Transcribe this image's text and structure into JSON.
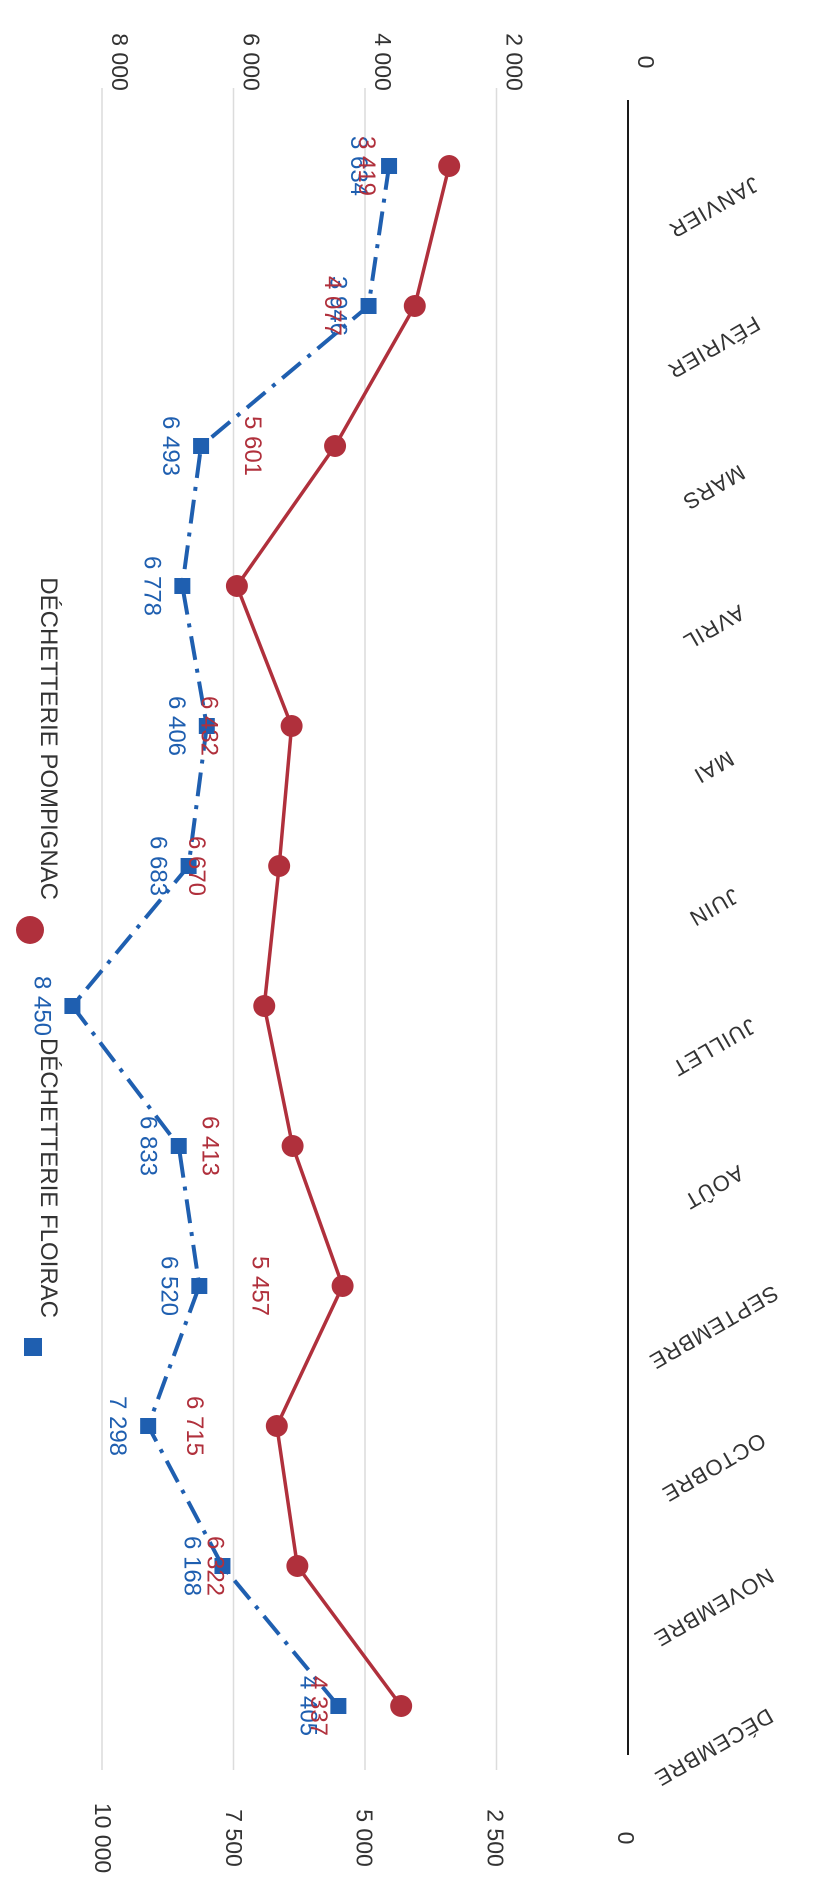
{
  "chart_data": {
    "type": "line",
    "title": "",
    "xlabel": "",
    "ylabel": "",
    "categories": [
      "JANVIER",
      "FÉVRIER",
      "MARS",
      "AVRIL",
      "MAI",
      "JUIN",
      "JUILLET",
      "AOÛT",
      "SEPTEMBRE",
      "OCTOBRE",
      "NOVEMBRE",
      "DÉCEMBRE"
    ],
    "series": [
      {
        "name": "DÉCHETTERIE FLOIRAC",
        "color": "#1f5fb0",
        "axis": "right",
        "marker": "square",
        "line_style": "dash-dot",
        "values": [
          3634,
          3946,
          6493,
          6778,
          6406,
          6683,
          8450,
          6833,
          6520,
          7298,
          6168,
          4405
        ],
        "labels": [
          "3 634",
          "3 946",
          "6 493",
          "6 778",
          "6 406",
          "6 683",
          "8 450",
          "6 833",
          "6 520",
          "7 298",
          "6 168",
          "4 405"
        ]
      },
      {
        "name": "DÉCHETTERIE POMPIGNAC",
        "color": "#b0303c",
        "axis": "left",
        "marker": "circle",
        "line_style": "solid",
        "values": [
          3419,
          4077,
          5601,
          7478,
          6432,
          6670,
          6955,
          6413,
          5457,
          6715,
          6322,
          4337
        ],
        "labels": [
          "3 419",
          "4 077",
          "5 601",
          "",
          "6 432",
          "6 670",
          "",
          "6 413",
          "5 457",
          "6 715",
          "6 322",
          "4 337"
        ]
      }
    ],
    "left_axis": {
      "ylim": [
        0,
        10000
      ],
      "ticks": [
        0,
        2500,
        5000,
        7500,
        10000
      ],
      "tick_labels": [
        "0",
        "2 500",
        "5 000",
        "7 500",
        "10 000"
      ]
    },
    "right_axis": {
      "ylim": [
        0,
        8000
      ],
      "ticks": [
        0,
        2000,
        4000,
        6000,
        8000
      ],
      "tick_labels": [
        "0",
        "2 000",
        "4 000",
        "6 000",
        "8 000"
      ]
    },
    "grid": true,
    "legend": "top",
    "orientation": "rotated-90-clockwise"
  }
}
